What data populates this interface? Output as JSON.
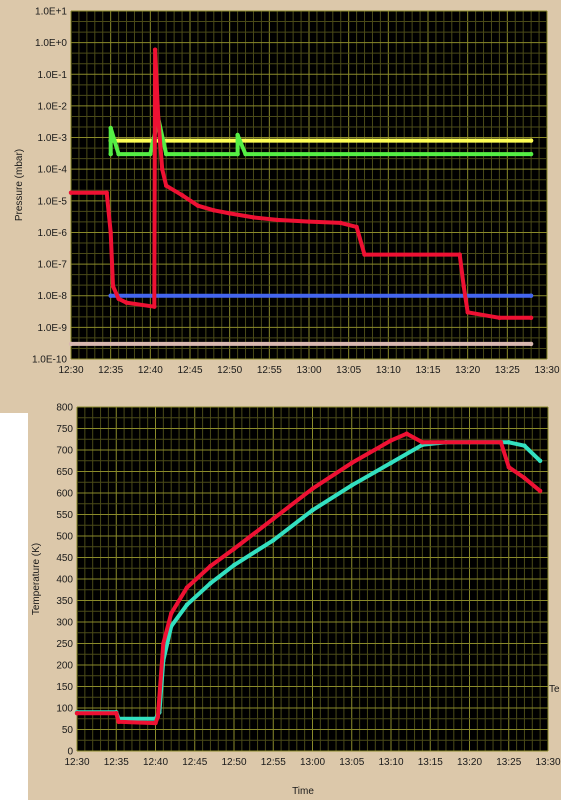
{
  "chart_data": [
    {
      "type": "line",
      "ylabel": "Pressure (mbar)",
      "xlabel": "",
      "yscale": "log",
      "ylim": [
        1e-10,
        10
      ],
      "xlim": [
        "12:30",
        "13:30"
      ],
      "y_tick_labels": [
        "1.0E+1",
        "1.0E+0",
        "1.0E-1",
        "1.0E-2",
        "1.0E-3",
        "1.0E-4",
        "1.0E-5",
        "1.0E-6",
        "1.0E-7",
        "1.0E-8",
        "1.0E-9",
        "1.0E-10"
      ],
      "x_tick_labels": [
        "12:30",
        "12:35",
        "12:40",
        "12:45",
        "12:50",
        "12:55",
        "13:00",
        "13:05",
        "13:10",
        "13:15",
        "13:20",
        "13:25",
        "13:30"
      ],
      "grid": true,
      "background": "#000000",
      "series": [
        {
          "color": "#ffff55",
          "points": [
            [
              "12:35",
              0.0008
            ],
            [
              "13:28",
              0.0008
            ]
          ]
        },
        {
          "color": "#55ee44",
          "points": [
            [
              "12:35",
              0.0003
            ],
            [
              "12:35",
              0.002
            ],
            [
              "12:36",
              0.0003
            ],
            [
              "12:40",
              0.0003
            ],
            [
              "12:41",
              0.004
            ],
            [
              "12:42",
              0.0003
            ],
            [
              "12:51",
              0.0003
            ],
            [
              "12:51",
              0.0012
            ],
            [
              "12:52",
              0.0003
            ],
            [
              "13:28",
              0.0003
            ]
          ]
        },
        {
          "color": "#4466ee",
          "points": [
            [
              "12:35",
              1e-08
            ],
            [
              "13:28",
              1e-08
            ]
          ]
        },
        {
          "color": "#d8b8b0",
          "points": [
            [
              "12:30",
              3e-10
            ],
            [
              "13:28",
              3e-10
            ]
          ]
        },
        {
          "color": "#ee1133",
          "points": [
            [
              "12:30",
              1.8e-05
            ],
            [
              "12:34.5",
              1.8e-05
            ],
            [
              "12:35",
              1e-06
            ],
            [
              "12:35.3",
              2e-08
            ],
            [
              "12:36",
              8e-09
            ],
            [
              "12:37",
              6e-09
            ],
            [
              "12:40.5",
              4.5e-09
            ],
            [
              "12:40.6",
              0.6
            ],
            [
              "12:41",
              0.004
            ],
            [
              "12:41.5",
              0.0001
            ],
            [
              "12:42",
              3e-05
            ],
            [
              "12:44",
              1.5e-05
            ],
            [
              "12:46",
              7e-06
            ],
            [
              "12:48",
              5e-06
            ],
            [
              "12:50",
              4e-06
            ],
            [
              "12:53",
              3e-06
            ],
            [
              "12:56",
              2.5e-06
            ],
            [
              "13:00",
              2.2e-06
            ],
            [
              "13:04",
              2e-06
            ],
            [
              "13:06",
              1.5e-06
            ],
            [
              "13:07",
              2e-07
            ],
            [
              "13:19",
              2e-07
            ],
            [
              "13:19.5",
              2e-08
            ],
            [
              "13:20",
              3e-09
            ],
            [
              "13:24",
              2e-09
            ],
            [
              "13:28",
              2e-09
            ]
          ]
        }
      ]
    },
    {
      "type": "line",
      "ylabel": "Temperature (K)",
      "xlabel": "Time",
      "ylim": [
        0,
        800
      ],
      "xlim": [
        "12:30",
        "13:30"
      ],
      "y_tick_labels": [
        "800",
        "750",
        "700",
        "650",
        "600",
        "550",
        "500",
        "450",
        "400",
        "350",
        "300",
        "250",
        "200",
        "150",
        "100",
        "50",
        "0"
      ],
      "x_tick_labels": [
        "12:30",
        "12:35",
        "12:40",
        "12:45",
        "12:50",
        "12:55",
        "13:00",
        "13:05",
        "13:10",
        "13:15",
        "13:20",
        "13:25",
        "13:30"
      ],
      "grid": true,
      "background": "#000000",
      "series": [
        {
          "color": "#33e0c0",
          "points": [
            [
              "12:30",
              90
            ],
            [
              "12:35",
              90
            ],
            [
              "12:35.3",
              75
            ],
            [
              "12:40",
              75
            ],
            [
              "12:40.5",
              90
            ],
            [
              "12:41",
              210
            ],
            [
              "12:42",
              290
            ],
            [
              "12:44",
              340
            ],
            [
              "12:47",
              390
            ],
            [
              "12:50",
              432
            ],
            [
              "12:55",
              490
            ],
            [
              "13:00",
              560
            ],
            [
              "13:05",
              618
            ],
            [
              "13:10",
              670
            ],
            [
              "13:14",
              712
            ],
            [
              "13:17",
              718
            ],
            [
              "13:20",
              718
            ],
            [
              "13:25",
              718
            ],
            [
              "13:27",
              710
            ],
            [
              "13:29",
              675
            ]
          ]
        },
        {
          "color": "#ee1133",
          "points": [
            [
              "12:30",
              88
            ],
            [
              "12:35",
              88
            ],
            [
              "12:35.3",
              68
            ],
            [
              "12:40",
              65
            ],
            [
              "12:40.3",
              80
            ],
            [
              "12:41",
              250
            ],
            [
              "12:42",
              320
            ],
            [
              "12:44",
              380
            ],
            [
              "12:47",
              430
            ],
            [
              "12:50",
              470
            ],
            [
              "12:55",
              540
            ],
            [
              "13:00",
              610
            ],
            [
              "13:05",
              670
            ],
            [
              "13:10",
              722
            ],
            [
              "13:12",
              738
            ],
            [
              "13:14",
              718
            ],
            [
              "13:20",
              718
            ],
            [
              "13:24",
              718
            ],
            [
              "13:25",
              660
            ],
            [
              "13:27",
              635
            ],
            [
              "13:29",
              605
            ]
          ]
        }
      ]
    }
  ],
  "stray_text": "Te"
}
